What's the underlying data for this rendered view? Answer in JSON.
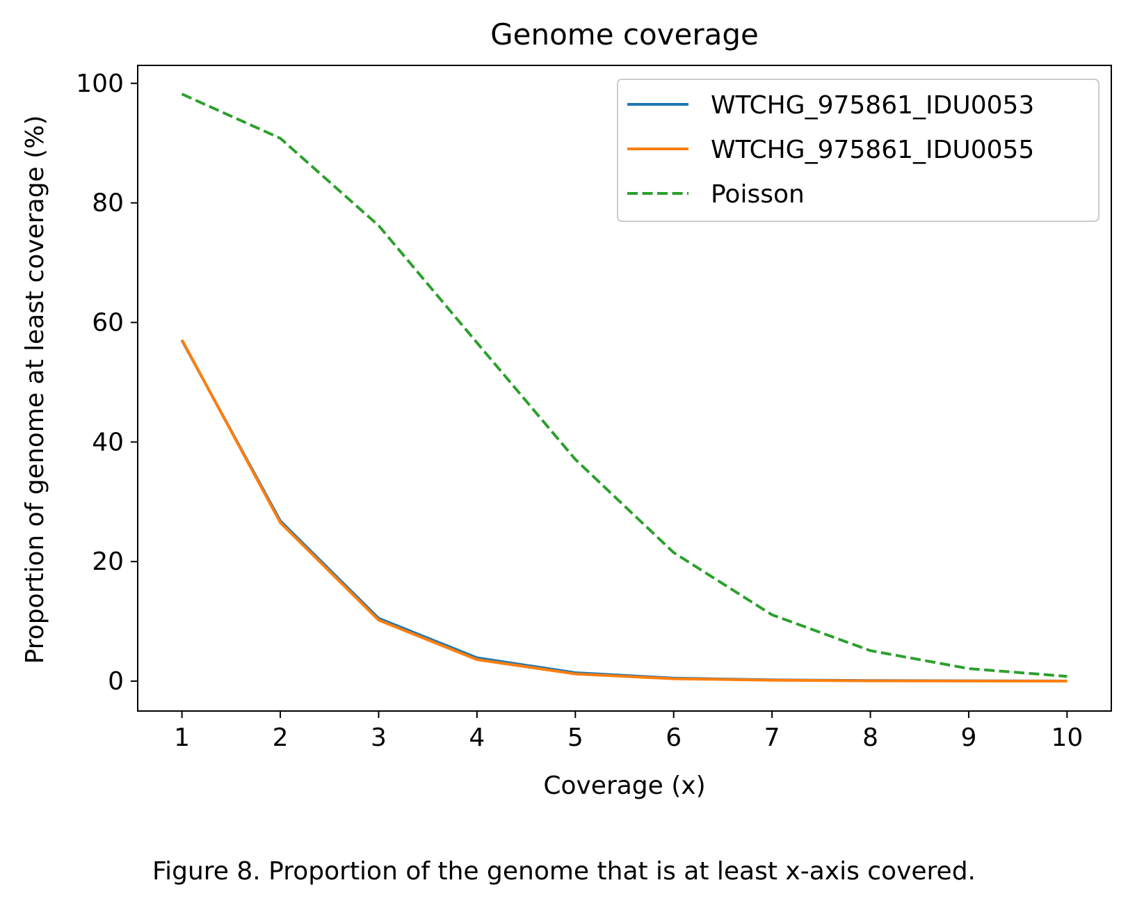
{
  "caption": "Figure 8. Proportion of the genome that is at least x-axis covered.",
  "chart_data": {
    "type": "line",
    "title": "Genome coverage",
    "xlabel": "Coverage (x)",
    "ylabel": "Proportion of genome at least coverage (%)",
    "x": [
      1,
      2,
      3,
      4,
      5,
      6,
      7,
      8,
      9,
      10
    ],
    "xticks": [
      "1",
      "2",
      "3",
      "4",
      "5",
      "6",
      "7",
      "8",
      "9",
      "10"
    ],
    "yticks": [
      "0",
      "20",
      "40",
      "60",
      "80",
      "100"
    ],
    "ytick_values": [
      0,
      20,
      40,
      60,
      80,
      100
    ],
    "xlim": [
      0.55,
      10.45
    ],
    "ylim": [
      -5,
      103
    ],
    "grid": false,
    "legend_position": "top-right",
    "series": [
      {
        "name": "WTCHG_975861_IDU0053",
        "color": "#1f77b4",
        "style": "solid",
        "values": [
          57.0,
          26.8,
          10.5,
          3.9,
          1.4,
          0.5,
          0.2,
          0.1,
          0.05,
          0.02
        ]
      },
      {
        "name": "WTCHG_975861_IDU0055",
        "color": "#ff7f0e",
        "style": "solid",
        "values": [
          57.1,
          26.5,
          10.2,
          3.6,
          1.2,
          0.4,
          0.15,
          0.05,
          0.02,
          0.01
        ]
      },
      {
        "name": "Poisson",
        "color": "#2ca02c",
        "style": "dashed",
        "values": [
          98.2,
          90.8,
          76.2,
          56.6,
          37.1,
          21.5,
          11.1,
          5.1,
          2.1,
          0.8
        ]
      }
    ]
  }
}
